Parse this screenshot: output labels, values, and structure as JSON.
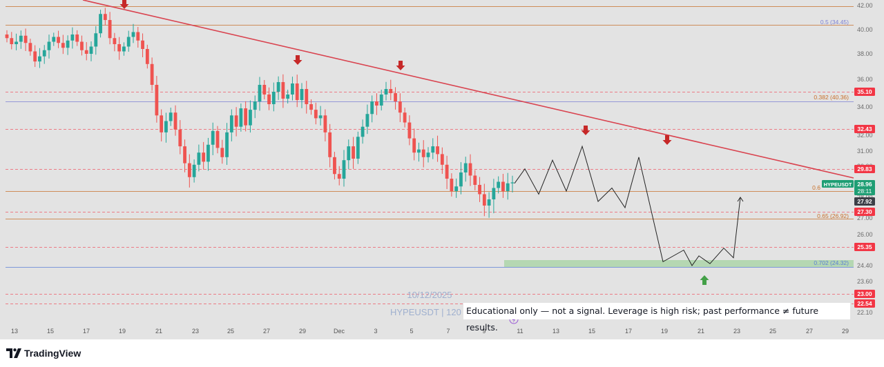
{
  "chart_data": {
    "type": "candlestick",
    "symbol": "HYPEUSDT",
    "watermark_date": "10/12/2025",
    "watermark_symbol": "HYPEUSDT | 120",
    "x_ticks": [
      "13",
      "15",
      "17",
      "19",
      "21",
      "23",
      "25",
      "27",
      "29",
      "Dec",
      "3",
      "5",
      "7",
      "9",
      "11",
      "13",
      "15",
      "17",
      "19",
      "21",
      "23",
      "25",
      "27",
      "29"
    ],
    "y_ticks": [
      "42.00",
      "40.00",
      "38.00",
      "36.00",
      "34.00",
      "32.00",
      "31.00",
      "30.00",
      "28.00",
      "27.00",
      "26.00",
      "24.40",
      "23.60",
      "22.10"
    ],
    "ohlc": [
      [
        39.6,
        39.3
      ],
      [
        39.3,
        38.8
      ],
      [
        38.8,
        39.0
      ],
      [
        39.0,
        39.5
      ],
      [
        39.5,
        38.9
      ],
      [
        38.9,
        38.2
      ],
      [
        38.2,
        37.4
      ],
      [
        37.4,
        37.8
      ],
      [
        37.8,
        38.3
      ],
      [
        38.3,
        39.0
      ],
      [
        39.0,
        39.4
      ],
      [
        39.4,
        38.9
      ],
      [
        38.9,
        38.5
      ],
      [
        38.5,
        39.1
      ],
      [
        39.1,
        39.6
      ],
      [
        39.6,
        39.0
      ],
      [
        39.0,
        38.3
      ],
      [
        38.3,
        38.0
      ],
      [
        38.0,
        38.6
      ],
      [
        38.6,
        39.7
      ],
      [
        39.7,
        41.3
      ],
      [
        41.3,
        40.8
      ],
      [
        40.8,
        39.3
      ],
      [
        39.3,
        38.8
      ],
      [
        38.8,
        38.2
      ],
      [
        38.2,
        38.6
      ],
      [
        38.6,
        39.4
      ],
      [
        39.4,
        39.8
      ],
      [
        39.8,
        39.1
      ],
      [
        39.1,
        38.4
      ],
      [
        38.4,
        37.2
      ],
      [
        37.2,
        35.6
      ],
      [
        35.6,
        33.4
      ],
      [
        33.4,
        32.2
      ],
      [
        32.2,
        33.0
      ],
      [
        33.0,
        33.6
      ],
      [
        33.6,
        32.4
      ],
      [
        32.4,
        31.3
      ],
      [
        31.3,
        30.2
      ],
      [
        30.2,
        29.3
      ],
      [
        29.3,
        30.1
      ],
      [
        30.1,
        30.9
      ],
      [
        30.9,
        30.3
      ],
      [
        30.3,
        31.4
      ],
      [
        31.4,
        32.3
      ],
      [
        32.3,
        31.2
      ],
      [
        31.2,
        30.6
      ],
      [
        30.6,
        32.2
      ],
      [
        32.2,
        33.4
      ],
      [
        33.4,
        32.6
      ],
      [
        32.6,
        33.9
      ],
      [
        33.9,
        32.7
      ],
      [
        32.7,
        33.8
      ],
      [
        33.8,
        34.4
      ],
      [
        34.4,
        35.6
      ],
      [
        35.6,
        34.9
      ],
      [
        34.9,
        34.2
      ],
      [
        34.2,
        35.1
      ],
      [
        35.1,
        35.8
      ],
      [
        35.8,
        34.6
      ],
      [
        34.6,
        34.9
      ],
      [
        34.9,
        35.7
      ],
      [
        35.7,
        34.5
      ],
      [
        34.5,
        35.3
      ],
      [
        35.3,
        34.2
      ],
      [
        34.2,
        33.8
      ],
      [
        33.8,
        33.2
      ],
      [
        33.2,
        33.4
      ],
      [
        33.4,
        32.2
      ],
      [
        32.2,
        30.6
      ],
      [
        30.6,
        29.5
      ],
      [
        29.5,
        29.2
      ],
      [
        29.2,
        30.4
      ],
      [
        30.4,
        31.3
      ],
      [
        31.3,
        30.5
      ],
      [
        30.5,
        31.9
      ],
      [
        31.9,
        32.6
      ],
      [
        32.6,
        33.5
      ],
      [
        33.5,
        34.4
      ],
      [
        34.4,
        34.1
      ],
      [
        34.1,
        34.9
      ],
      [
        34.9,
        35.3
      ],
      [
        35.3,
        35.0
      ],
      [
        35.0,
        34.4
      ],
      [
        34.4,
        33.6
      ],
      [
        33.6,
        32.9
      ],
      [
        32.9,
        31.8
      ],
      [
        31.8,
        30.9
      ],
      [
        30.9,
        31.1
      ],
      [
        31.1,
        30.6
      ],
      [
        30.6,
        30.9
      ],
      [
        30.9,
        31.3
      ],
      [
        31.3,
        30.8
      ],
      [
        30.8,
        30.1
      ],
      [
        30.1,
        29.2
      ],
      [
        29.2,
        28.4
      ],
      [
        28.4,
        28.7
      ],
      [
        28.7,
        29.6
      ],
      [
        29.6,
        30.2
      ],
      [
        30.2,
        29.4
      ],
      [
        29.4,
        28.8
      ],
      [
        28.8,
        28.2
      ],
      [
        28.2,
        27.6
      ],
      [
        27.6,
        27.9
      ],
      [
        27.9,
        28.6
      ],
      [
        28.6,
        29.0
      ],
      [
        29.0,
        28.4
      ],
      [
        28.4,
        28.9
      ],
      [
        28.9,
        28.96
      ]
    ],
    "price_levels": [
      {
        "label": "35.10",
        "value": 35.1,
        "color": "#f23645"
      },
      {
        "label": "32.43",
        "value": 32.43,
        "color": "#f23645"
      },
      {
        "label": "29.83",
        "value": 29.83,
        "color": "#f23645"
      },
      {
        "label": "27.30",
        "value": 27.3,
        "color": "#f23645"
      },
      {
        "label": "25.35",
        "value": 25.35,
        "color": "#f23645"
      },
      {
        "label": "23.00",
        "value": 23.0,
        "color": "#f23645"
      },
      {
        "label": "22.54",
        "value": 22.54,
        "color": "#f23645"
      }
    ],
    "fib_levels": [
      {
        "label": "0.5 (34.45)",
        "color": "#7b7fd4"
      },
      {
        "label": "0.382 (40.36)",
        "color": "#c8702a"
      },
      {
        "label": "0.65 (26.92)",
        "color": "#c8702a"
      },
      {
        "label": "0.702 (24.32)",
        "color": "#5b7fd6"
      },
      {
        "label": "0.6",
        "color": "#c8702a"
      }
    ],
    "current_price": {
      "symbol": "HYPEUSDT",
      "price": "28.96",
      "countdown": "28:11",
      "color": "#1e9e74"
    },
    "crosshair_price": "27.92",
    "projection": [
      28.9,
      29.83,
      28.2,
      30.4,
      28.4,
      31.3,
      27.8,
      28.6,
      27.5,
      30.6,
      24.6,
      25.2,
      24.4,
      24.9,
      24.5,
      25.3,
      24.8,
      28.0
    ]
  },
  "disclaimer": "Educational only — not a signal. Leverage is high risk; past performance ≠ future results.",
  "brand": {
    "name": "TradingView"
  }
}
